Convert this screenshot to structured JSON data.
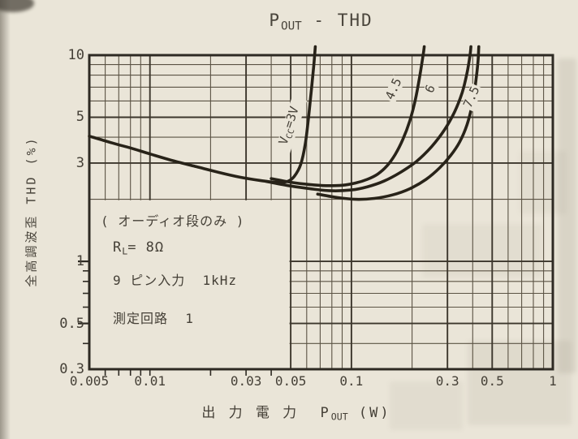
{
  "chart_data": {
    "type": "line",
    "title": "POUT - THD",
    "title_parts": [
      {
        "t": "P"
      },
      {
        "t": "OUT",
        "sub": true
      },
      {
        "t": " - THD"
      }
    ],
    "xlabel": "出力電力 POUT (W)",
    "xlabel_parts": [
      {
        "t": "出 力 電 力  P"
      },
      {
        "t": "OUT",
        "sub": true
      },
      {
        "t": " (W)"
      }
    ],
    "ylabel": "全高調波歪 THD (%)",
    "x_axis": {
      "scale": "log",
      "range": [
        0.005,
        1
      ],
      "ticks": [
        {
          "value": 0.005,
          "label": "0.005"
        },
        {
          "value": 0.01,
          "label": "0.01"
        },
        {
          "value": 0.03,
          "label": "0.03"
        },
        {
          "value": 0.05,
          "label": "0.05"
        },
        {
          "value": 0.1,
          "label": "0.1"
        },
        {
          "value": 0.3,
          "label": "0.3"
        },
        {
          "value": 0.5,
          "label": "0.5"
        },
        {
          "value": 1,
          "label": "1"
        }
      ],
      "outer_ticks": [
        0.006,
        0.007,
        0.008,
        0.009,
        0.01,
        0.02,
        0.03,
        0.04
      ]
    },
    "y_axis": {
      "scale": "log",
      "range": [
        0.3,
        10
      ],
      "ticks": [
        {
          "value": 10,
          "label": "10"
        },
        {
          "value": 5,
          "label": "5"
        },
        {
          "value": 3,
          "label": "3"
        },
        {
          "value": 1,
          "label": "1"
        },
        {
          "value": 0.5,
          "label": "0.5"
        },
        {
          "value": 0.3,
          "label": "0.3"
        }
      ],
      "outer_ticks_minor": [
        0.9,
        0.8,
        0.7,
        0.6,
        0.4
      ],
      "outer_ticks_major": [
        1,
        0.5
      ]
    },
    "grid": true,
    "legend_position": "labels-on-curves",
    "series": [
      {
        "id": "vcc-3v",
        "name": "VCC=3V",
        "label": "VCC=3V",
        "label_parts": [
          {
            "t": "V"
          },
          {
            "t": "CC",
            "sub": true
          },
          {
            "t": "=3V"
          }
        ],
        "points": [
          [
            0.005,
            4.05
          ],
          [
            0.0065,
            3.75
          ],
          [
            0.008,
            3.55
          ],
          [
            0.01,
            3.32
          ],
          [
            0.013,
            3.08
          ],
          [
            0.017,
            2.88
          ],
          [
            0.022,
            2.7
          ],
          [
            0.028,
            2.56
          ],
          [
            0.035,
            2.47
          ],
          [
            0.042,
            2.42
          ],
          [
            0.048,
            2.44
          ],
          [
            0.052,
            2.58
          ],
          [
            0.056,
            2.95
          ],
          [
            0.059,
            3.7
          ],
          [
            0.061,
            4.8
          ],
          [
            0.063,
            6.5
          ],
          [
            0.065,
            8.8
          ],
          [
            0.0662,
            11
          ]
        ]
      },
      {
        "id": "vcc-4-5v",
        "name": "VCC=4.5V",
        "label": "4.5",
        "points": [
          [
            0.04,
            2.52
          ],
          [
            0.05,
            2.42
          ],
          [
            0.062,
            2.36
          ],
          [
            0.075,
            2.33
          ],
          [
            0.09,
            2.34
          ],
          [
            0.105,
            2.4
          ],
          [
            0.12,
            2.5
          ],
          [
            0.135,
            2.65
          ],
          [
            0.15,
            2.9
          ],
          [
            0.165,
            3.3
          ],
          [
            0.18,
            3.9
          ],
          [
            0.195,
            4.8
          ],
          [
            0.207,
            6.0
          ],
          [
            0.218,
            7.8
          ],
          [
            0.227,
            10
          ],
          [
            0.23,
            11
          ]
        ]
      },
      {
        "id": "vcc-6v",
        "name": "VCC=6V",
        "label": "6",
        "points": [
          [
            0.038,
            2.44
          ],
          [
            0.05,
            2.32
          ],
          [
            0.065,
            2.24
          ],
          [
            0.08,
            2.2
          ],
          [
            0.1,
            2.22
          ],
          [
            0.12,
            2.3
          ],
          [
            0.145,
            2.45
          ],
          [
            0.175,
            2.7
          ],
          [
            0.21,
            3.05
          ],
          [
            0.25,
            3.6
          ],
          [
            0.29,
            4.35
          ],
          [
            0.325,
            5.3
          ],
          [
            0.355,
            6.6
          ],
          [
            0.375,
            8.2
          ],
          [
            0.388,
            10
          ],
          [
            0.392,
            11
          ]
        ]
      },
      {
        "id": "vcc-7-5v",
        "name": "VCC=7.5V",
        "label": "7.5",
        "points": [
          [
            0.068,
            2.12
          ],
          [
            0.085,
            2.04
          ],
          [
            0.105,
            2.0
          ],
          [
            0.13,
            2.02
          ],
          [
            0.16,
            2.1
          ],
          [
            0.195,
            2.25
          ],
          [
            0.235,
            2.5
          ],
          [
            0.275,
            2.85
          ],
          [
            0.31,
            3.25
          ],
          [
            0.345,
            3.8
          ],
          [
            0.375,
            4.6
          ],
          [
            0.4,
            5.9
          ],
          [
            0.415,
            7.5
          ],
          [
            0.425,
            9.3
          ],
          [
            0.429,
            11
          ]
        ]
      }
    ],
    "annotations": {
      "box_lines": [
        {
          "text": "( オーディオ段のみ )"
        },
        {
          "parts": [
            {
              "t": "R"
            },
            {
              "t": "L",
              "sub": true
            },
            {
              "t": "= 8Ω"
            }
          ]
        },
        {
          "text": "9 ピン入力  1kHz"
        },
        {
          "text": "測定回路  1"
        }
      ]
    },
    "colors": {
      "paper": "#eae5d8",
      "ink": "#454037",
      "frame": "#2e2a23",
      "grid": "#5b5344",
      "grid_major": "#3c362c",
      "curve": "#282319"
    }
  }
}
